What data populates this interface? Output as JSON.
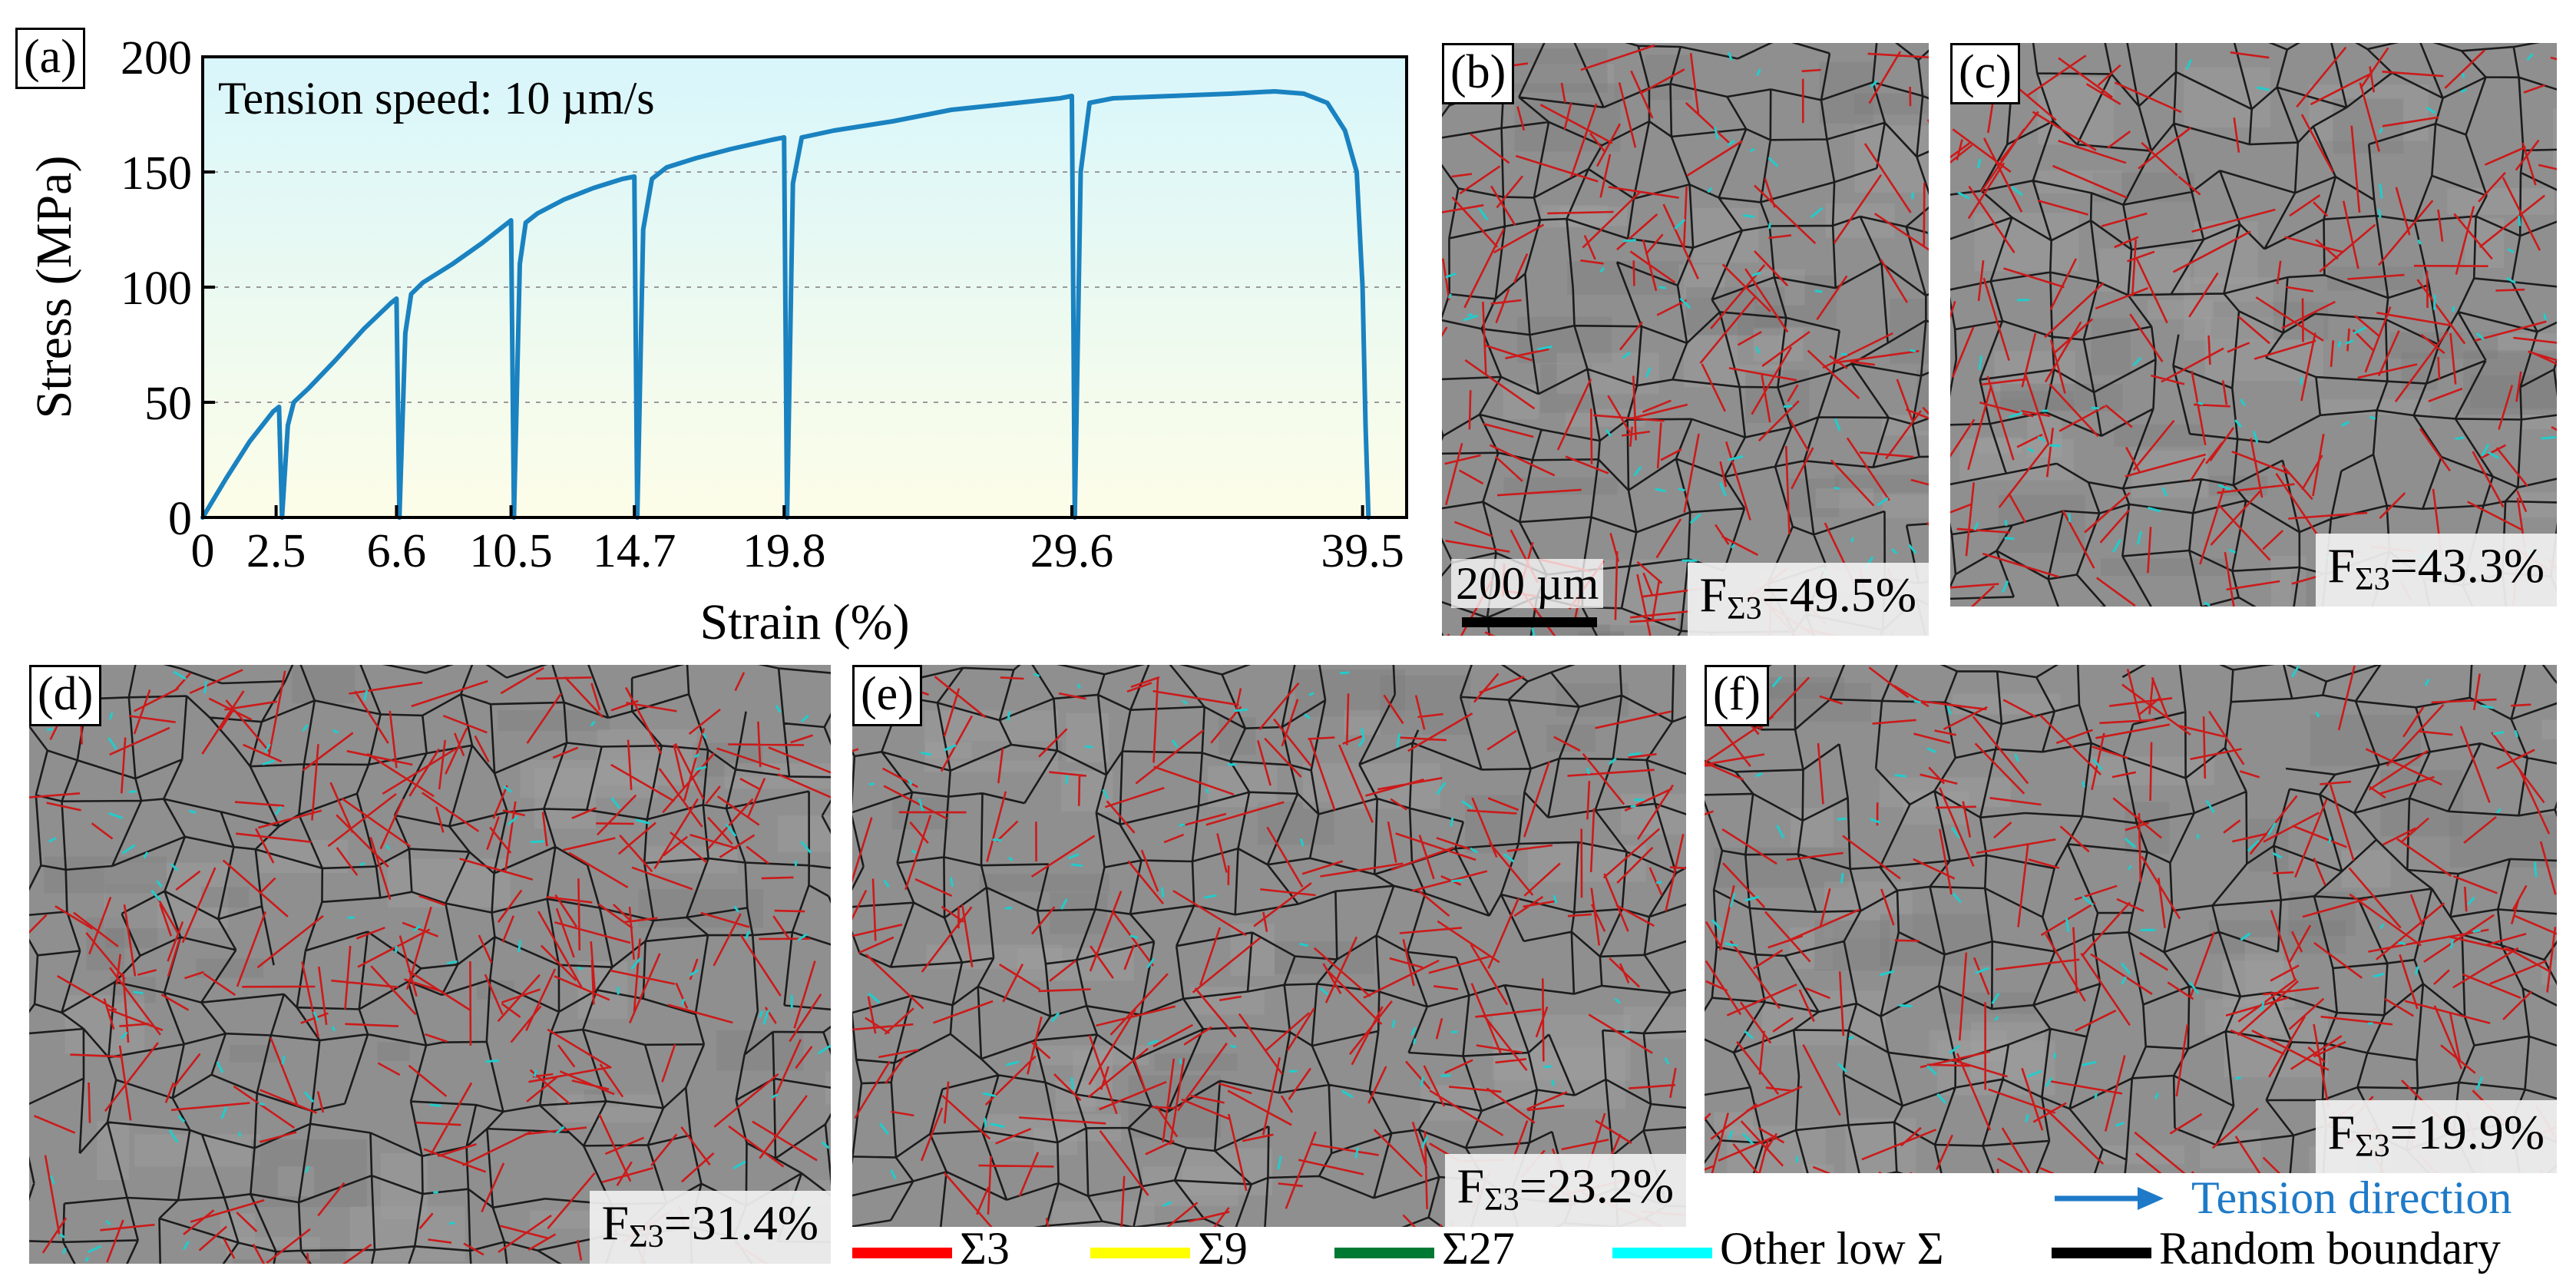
{
  "panels": {
    "a": {
      "label": "(a)"
    },
    "b": {
      "label": "(b)",
      "fraction": "=49.5%",
      "scalebar": "200 µm"
    },
    "c": {
      "label": "(c)",
      "fraction": "=43.3%"
    },
    "d": {
      "label": "(d)",
      "fraction": "=31.4%"
    },
    "e": {
      "label": "(e)",
      "fraction": "=23.2%"
    },
    "f": {
      "label": "(f)",
      "fraction": "=19.9%"
    }
  },
  "fraction_symbol": "F",
  "fraction_subscript": "Σ3",
  "legend": {
    "tension": "Tension direction",
    "items": [
      {
        "label": "Σ3",
        "color": "#ff0000"
      },
      {
        "label": "Σ9",
        "color": "#ffff00"
      },
      {
        "label": "Σ27",
        "color": "#007a33"
      },
      {
        "label": "Other low Σ",
        "color": "#00ffff"
      },
      {
        "label": "Random boundary",
        "color": "#000000"
      }
    ],
    "tension_color": "#1e7ac8"
  },
  "colors": {
    "curve": "#1a82c0",
    "map_bg": "#8f8f8f",
    "sigma3": "#cc1a1a",
    "random": "#1c1c1c",
    "low_sigma": "#22cccc"
  },
  "chart_data": {
    "type": "line",
    "annotation": "Tension speed: 10 µm/s",
    "xlabel": "Strain (%)",
    "ylabel": "Stress (MPa)",
    "xlim": [
      0,
      41
    ],
    "ylim": [
      0,
      200
    ],
    "xticks": [
      0,
      2.5,
      6.6,
      10.5,
      14.7,
      19.8,
      29.6,
      39.5
    ],
    "yticks": [
      0,
      50,
      100,
      150,
      200
    ],
    "grid": "horizontal dashed",
    "segments": [
      {
        "x": [
          0,
          0.8,
          1.6,
          2.4,
          2.6,
          2.7
        ],
        "y": [
          0,
          17,
          33,
          46,
          48,
          0
        ]
      },
      {
        "x": [
          2.7,
          2.9,
          3.1,
          3.6,
          4.5,
          5.5,
          6.4,
          6.6,
          6.7
        ],
        "y": [
          0,
          40,
          50,
          56,
          68,
          82,
          93,
          95,
          0
        ]
      },
      {
        "x": [
          6.7,
          6.9,
          7.1,
          7.5,
          8.5,
          9.5,
          10.2,
          10.5,
          10.6
        ],
        "y": [
          0,
          80,
          97,
          102,
          110,
          119,
          126,
          129,
          0
        ]
      },
      {
        "x": [
          10.6,
          10.8,
          11.0,
          11.4,
          12.3,
          13.3,
          14.3,
          14.7,
          14.8
        ],
        "y": [
          0,
          110,
          128,
          132,
          138,
          143,
          147,
          148,
          0
        ]
      },
      {
        "x": [
          14.8,
          15.0,
          15.3,
          15.8,
          16.8,
          18.0,
          19.4,
          19.8,
          19.9
        ],
        "y": [
          0,
          125,
          147,
          152,
          156,
          160,
          164,
          165,
          0
        ]
      },
      {
        "x": [
          19.9,
          20.1,
          20.4,
          21.5,
          23.5,
          25.5,
          27.0,
          29.2,
          29.6,
          29.7
        ],
        "y": [
          0,
          145,
          165,
          168,
          172,
          177,
          179,
          182,
          183,
          0
        ]
      },
      {
        "x": [
          29.7,
          29.9,
          30.2,
          31.0,
          33.0,
          35.0,
          36.5,
          37.5,
          38.3,
          38.9,
          39.3,
          39.5,
          39.6,
          39.7
        ],
        "y": [
          0,
          150,
          180,
          182,
          183,
          184,
          185,
          184,
          180,
          168,
          150,
          100,
          40,
          0
        ]
      }
    ]
  }
}
